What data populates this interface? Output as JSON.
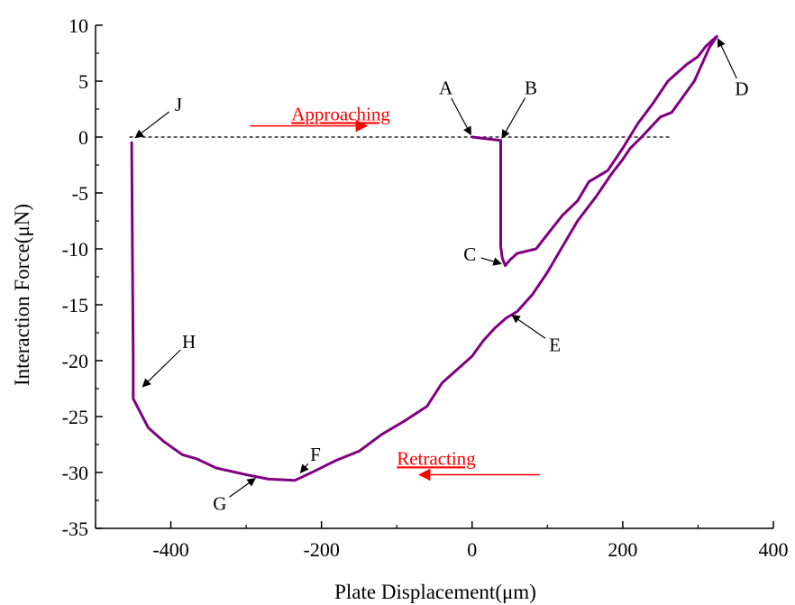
{
  "chart_data": {
    "type": "line",
    "title": "",
    "xlabel": "Plate Displacement(μm)",
    "ylabel": "Interaction Force(μN)",
    "xlim": [
      -500,
      400
    ],
    "ylim": [
      -35,
      10
    ],
    "x_ticks": [
      "-400",
      "-200",
      "0",
      "200",
      "400"
    ],
    "y_ticks": [
      "10",
      "5",
      "0",
      "-5",
      "-10",
      "-15",
      "-20",
      "-25",
      "-30",
      "-35"
    ],
    "x_tick_values": [
      -400,
      -200,
      0,
      200,
      400
    ],
    "y_tick_values": [
      10,
      5,
      0,
      -5,
      -10,
      -15,
      -20,
      -25,
      -30,
      -35
    ],
    "baseline": {
      "y": 0,
      "x_range": [
        -455,
        265
      ],
      "style": "dashed"
    },
    "colors": {
      "curve": "#800080",
      "phase_text": "#ff0000",
      "axes": "#000000"
    },
    "series": [
      {
        "points": [
          [
            0,
            0
          ],
          [
            38,
            -0.3
          ],
          [
            38,
            -9.8
          ],
          [
            40,
            -10.8
          ],
          [
            44,
            -11.5
          ],
          [
            50,
            -11.0
          ],
          [
            60,
            -10.4
          ],
          [
            85,
            -10.0
          ],
          [
            100,
            -8.7
          ],
          [
            120,
            -7.0
          ],
          [
            140,
            -5.7
          ],
          [
            155,
            -4.0
          ],
          [
            180,
            -3.0
          ],
          [
            200,
            -1.0
          ],
          [
            220,
            1.2
          ],
          [
            240,
            3.0
          ],
          [
            260,
            5.0
          ],
          [
            285,
            6.5
          ],
          [
            300,
            7.2
          ],
          [
            310,
            8.1
          ],
          [
            318,
            8.6
          ],
          [
            325,
            9.0
          ],
          [
            315,
            8.0
          ],
          [
            295,
            5.0
          ],
          [
            265,
            2.2
          ],
          [
            250,
            1.8
          ],
          [
            225,
            0.0
          ],
          [
            210,
            -1.0
          ],
          [
            200,
            -2.0
          ],
          [
            185,
            -3.3
          ],
          [
            165,
            -5.3
          ],
          [
            140,
            -7.5
          ],
          [
            120,
            -9.8
          ],
          [
            100,
            -12.1
          ],
          [
            80,
            -14.1
          ],
          [
            60,
            -15.6
          ],
          [
            45,
            -16.2
          ],
          [
            30,
            -17.1
          ],
          [
            15,
            -18.2
          ],
          [
            0,
            -19.6
          ],
          [
            -20,
            -20.8
          ],
          [
            -40,
            -22.0
          ],
          [
            -60,
            -24.1
          ],
          [
            -90,
            -25.4
          ],
          [
            -120,
            -26.6
          ],
          [
            -150,
            -28.1
          ],
          [
            -180,
            -28.9
          ],
          [
            -210,
            -29.9
          ],
          [
            -235,
            -30.7
          ],
          [
            -270,
            -30.6
          ],
          [
            -300,
            -30.2
          ],
          [
            -340,
            -29.6
          ],
          [
            -365,
            -28.8
          ],
          [
            -385,
            -28.4
          ],
          [
            -410,
            -27.2
          ],
          [
            -430,
            -26.0
          ],
          [
            -450,
            -23.4
          ],
          [
            -450,
            -20.0
          ],
          [
            -451,
            -10.0
          ],
          [
            -452,
            -0.5
          ]
        ]
      }
    ],
    "annotations": [
      {
        "label": "A",
        "point": [
          0,
          0
        ],
        "text_at": [
          -35,
          4.4
        ]
      },
      {
        "label": "B",
        "point": [
          38,
          -0.3
        ],
        "text_at": [
          78,
          4.4
        ]
      },
      {
        "label": "C",
        "point": [
          42,
          -11.4
        ],
        "text_at": [
          -3,
          -10.5
        ]
      },
      {
        "label": "D",
        "point": [
          325,
          9.0
        ],
        "text_at": [
          358,
          4.3
        ]
      },
      {
        "label": "E",
        "point": [
          50,
          -15.8
        ],
        "text_at": [
          110,
          -18.6
        ]
      },
      {
        "label": "F",
        "point": [
          -230,
          -30.2
        ],
        "text_at": [
          -208,
          -28.4
        ]
      },
      {
        "label": "G",
        "point": [
          -285,
          -30.4
        ],
        "text_at": [
          -335,
          -32.8
        ]
      },
      {
        "label": "H",
        "point": [
          -440,
          -22.5
        ],
        "text_at": [
          -376,
          -18.3
        ]
      },
      {
        "label": "J",
        "point": [
          -450,
          -0.2
        ],
        "text_at": [
          -390,
          2.9
        ]
      }
    ],
    "phase_labels": [
      {
        "text": "Approaching",
        "text_at": [
          -240,
          1.5
        ],
        "arrow_from": [
          -295,
          1.0
        ],
        "arrow_to": [
          -140,
          1.0
        ]
      },
      {
        "text": "Retracting",
        "text_at": [
          -100,
          -29.3
        ],
        "arrow_from": [
          90,
          -30.2
        ],
        "arrow_to": [
          -70,
          -30.2
        ]
      }
    ]
  }
}
